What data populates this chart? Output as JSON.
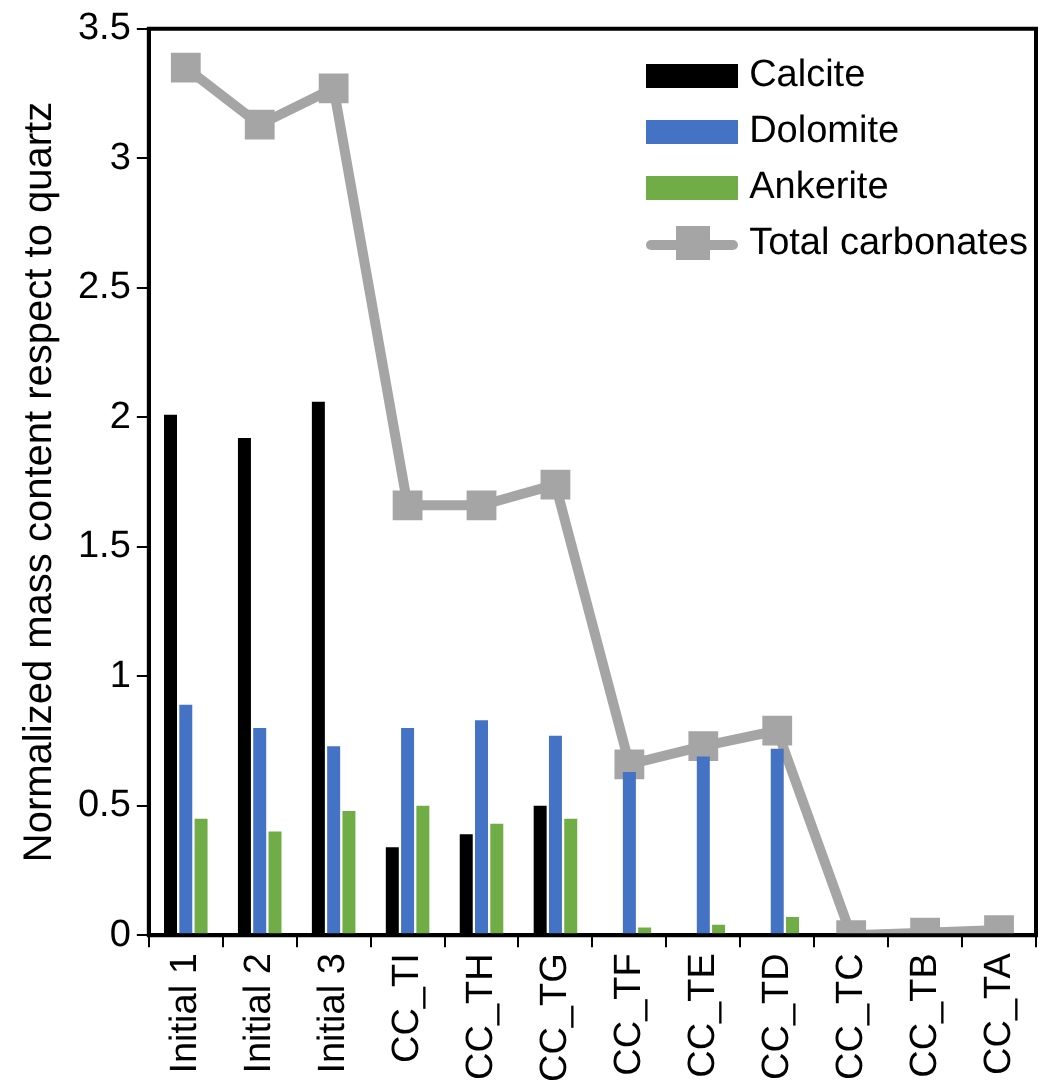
{
  "chart_data": {
    "type": "bar",
    "ylabel": "Normalized mass content respect to quartz",
    "categories": [
      "Initial 1",
      "Initial 2",
      "Initial 3",
      "CC_TI",
      "CC_TH",
      "CC_TG",
      "CC_TF",
      "CC_TE",
      "CC_TD",
      "CC_TC",
      "CC_TB",
      "CC_TA"
    ],
    "series": [
      {
        "name": "Calcite",
        "color": "#000000",
        "values": [
          2.01,
          1.92,
          2.06,
          0.34,
          0.39,
          0.5,
          0,
          0,
          0,
          0,
          0,
          0
        ]
      },
      {
        "name": "Dolomite",
        "color": "#4472c4",
        "values": [
          0.89,
          0.8,
          0.73,
          0.8,
          0.83,
          0.77,
          0.63,
          0.69,
          0.72,
          0,
          0,
          0
        ]
      },
      {
        "name": "Ankerite",
        "color": "#70ad47",
        "values": [
          0.45,
          0.4,
          0.48,
          0.5,
          0.43,
          0.45,
          0.03,
          0.04,
          0.07,
          0,
          0,
          0
        ]
      },
      {
        "name": "Total carbonates",
        "type": "line",
        "color": "#a5a5a5",
        "values": [
          3.35,
          3.13,
          3.27,
          1.66,
          1.66,
          1.74,
          0.66,
          0.73,
          0.79,
          0,
          0.01,
          0.02
        ]
      }
    ],
    "ylim": [
      0,
      3.5
    ],
    "yticks": [
      0,
      0.5,
      1,
      1.5,
      2,
      2.5,
      3,
      3.5
    ],
    "grid": false,
    "legend": "top right",
    "marker": "square",
    "line_style": "solid"
  }
}
